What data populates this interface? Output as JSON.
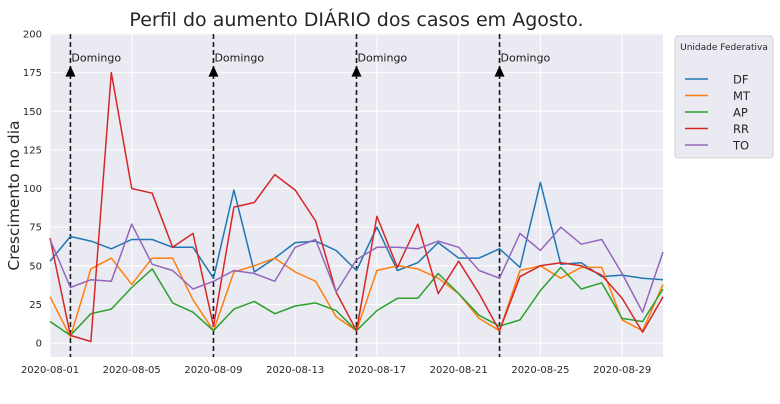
{
  "chart_data": {
    "type": "line",
    "title": "Perfil do aumento DIÁRIO dos casos em Agosto.",
    "xlabel": "",
    "ylabel": "Crescimento no dia",
    "x": [
      "2020-08-01",
      "2020-08-02",
      "2020-08-03",
      "2020-08-04",
      "2020-08-05",
      "2020-08-06",
      "2020-08-07",
      "2020-08-08",
      "2020-08-09",
      "2020-08-10",
      "2020-08-11",
      "2020-08-12",
      "2020-08-13",
      "2020-08-14",
      "2020-08-15",
      "2020-08-16",
      "2020-08-17",
      "2020-08-18",
      "2020-08-19",
      "2020-08-20",
      "2020-08-21",
      "2020-08-22",
      "2020-08-23",
      "2020-08-24",
      "2020-08-25",
      "2020-08-26",
      "2020-08-27",
      "2020-08-28",
      "2020-08-29",
      "2020-08-30",
      "2020-08-31"
    ],
    "xticks": [
      "2020-08-01",
      "2020-08-05",
      "2020-08-09",
      "2020-08-13",
      "2020-08-17",
      "2020-08-21",
      "2020-08-25",
      "2020-08-29"
    ],
    "xlim": [
      "2020-08-01",
      "2020-08-31"
    ],
    "ylim": [
      -9,
      200
    ],
    "yticks": [
      0,
      25,
      50,
      75,
      100,
      125,
      150,
      175,
      200
    ],
    "grid": true,
    "legend": {
      "title": "Unidade Federativa",
      "placement": "outside-right-top"
    },
    "series": [
      {
        "name": "DF",
        "color": "#1f77b4",
        "values": [
          53,
          69,
          66,
          61,
          67,
          67,
          62,
          62,
          42,
          99,
          46,
          55,
          65,
          66,
          60,
          47,
          75,
          47,
          52,
          65,
          55,
          55,
          61,
          49,
          104,
          51,
          52,
          43,
          44,
          42,
          41
        ]
      },
      {
        "name": "MT",
        "color": "#ff7f0e",
        "values": [
          30,
          4,
          48,
          55,
          38,
          55,
          55,
          28,
          8,
          46,
          50,
          55,
          46,
          40,
          17,
          8,
          47,
          50,
          48,
          42,
          32,
          16,
          8,
          47,
          50,
          42,
          49,
          49,
          15,
          8,
          38
        ]
      },
      {
        "name": "AP",
        "color": "#2ca02c",
        "values": [
          14,
          5,
          19,
          22,
          36,
          48,
          26,
          20,
          8,
          22,
          27,
          19,
          24,
          26,
          21,
          8,
          21,
          29,
          29,
          45,
          32,
          18,
          11,
          15,
          34,
          49,
          35,
          39,
          16,
          14,
          35
        ]
      },
      {
        "name": "RR",
        "color": "#d62728",
        "values": [
          68,
          5,
          1,
          175,
          100,
          97,
          62,
          71,
          11,
          88,
          91,
          109,
          99,
          79,
          33,
          8,
          82,
          49,
          77,
          32,
          53,
          32,
          8,
          43,
          50,
          52,
          50,
          44,
          29,
          7,
          30
        ]
      },
      {
        "name": "TO",
        "color": "#9467bd",
        "values": [
          67,
          36,
          41,
          40,
          77,
          51,
          47,
          35,
          40,
          47,
          45,
          40,
          62,
          67,
          33,
          54,
          62,
          62,
          61,
          66,
          62,
          47,
          42,
          71,
          60,
          75,
          64,
          67,
          45,
          20,
          59
        ]
      }
    ],
    "annotations": [
      {
        "x": "2020-08-02",
        "y": 175,
        "text": "Domingo"
      },
      {
        "x": "2020-08-09",
        "y": 175,
        "text": "Domingo"
      },
      {
        "x": "2020-08-16",
        "y": 175,
        "text": "Domingo"
      },
      {
        "x": "2020-08-23",
        "y": 175,
        "text": "Domingo"
      }
    ]
  }
}
